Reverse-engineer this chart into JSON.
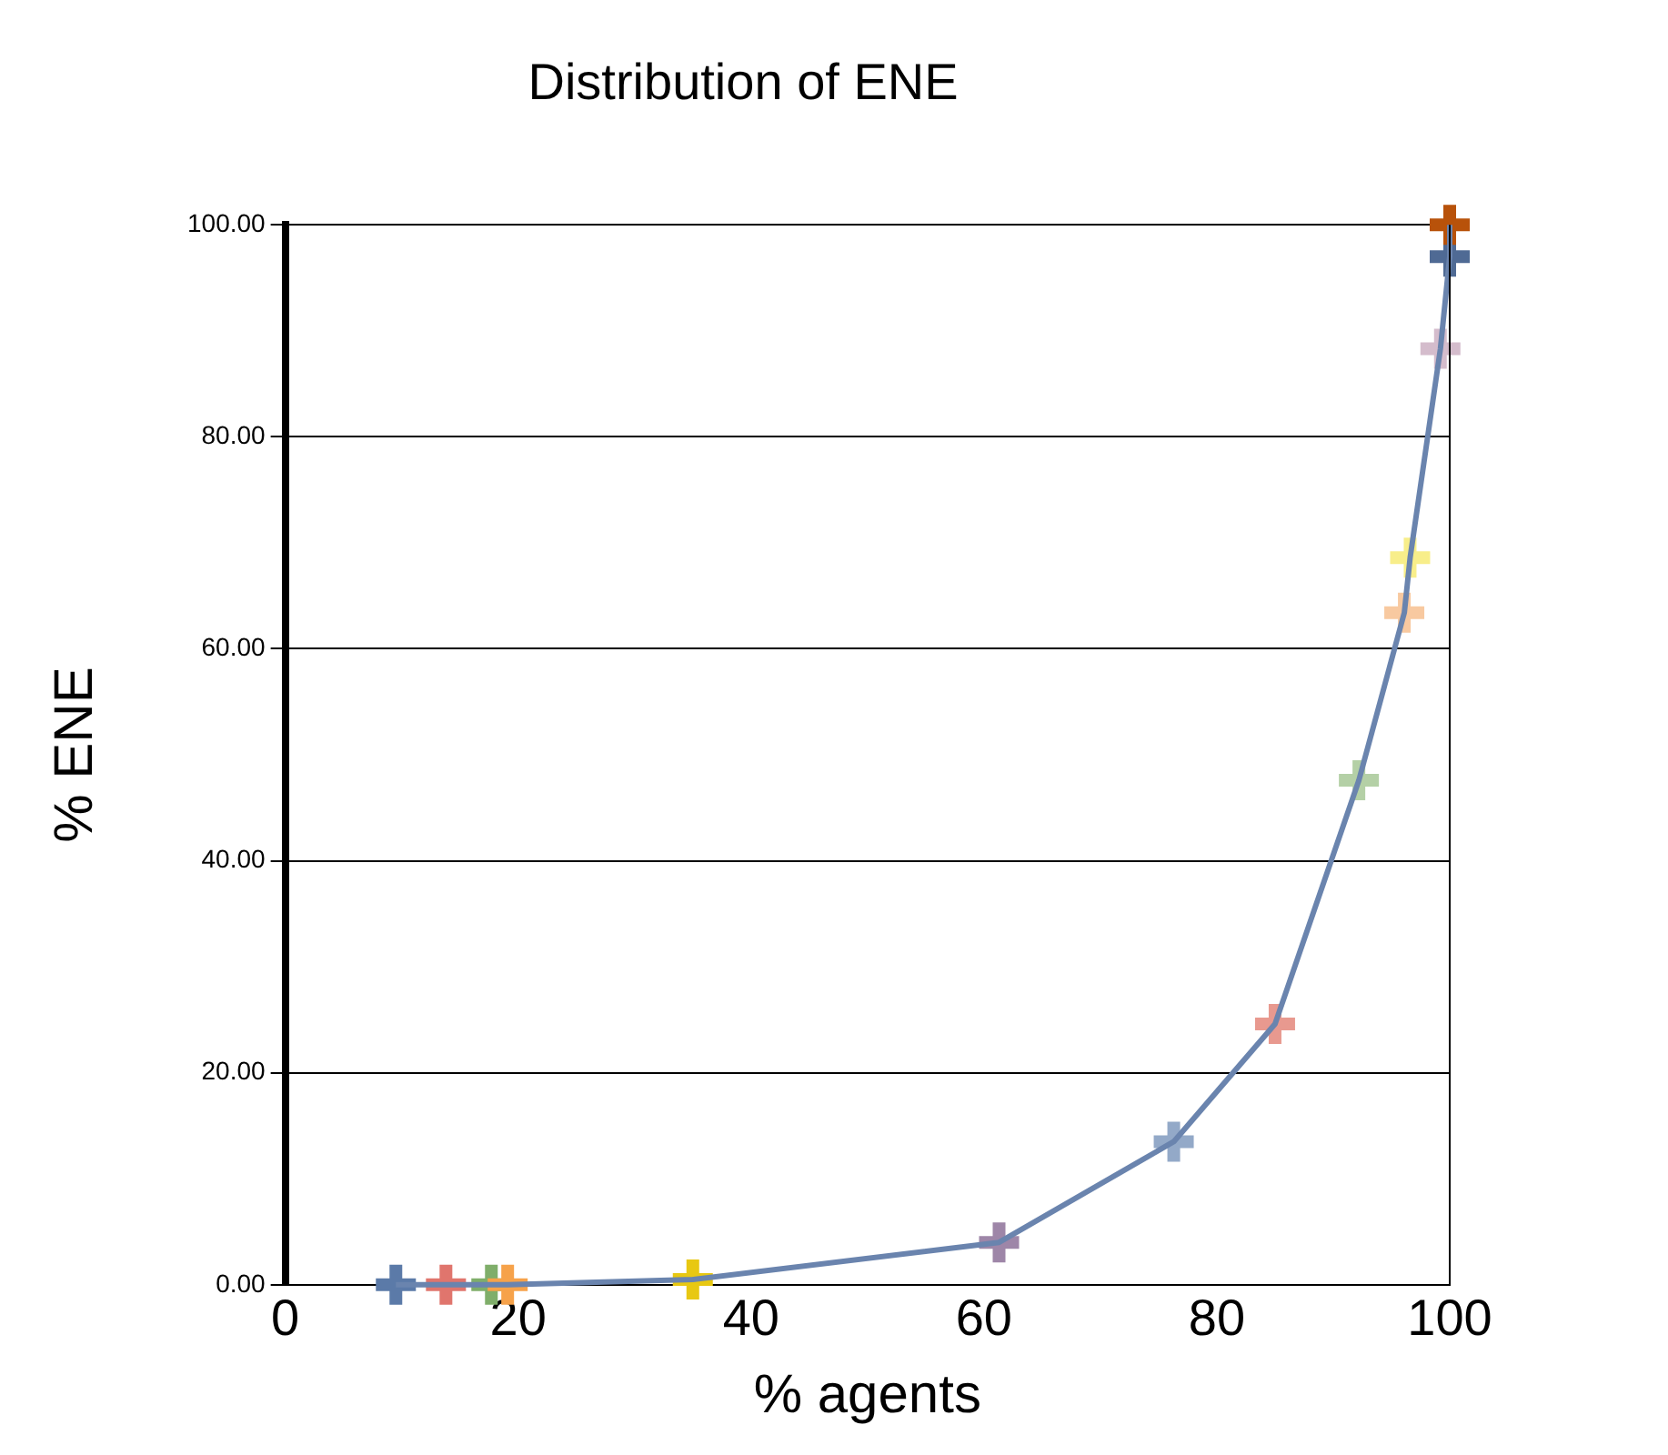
{
  "chart_data": {
    "type": "line",
    "title": "Distribution of ENE",
    "xlabel": "% agents",
    "ylabel": "% ENE",
    "x": [
      9.5,
      13.8,
      17.7,
      19.1,
      35,
      61.3,
      76.3,
      85,
      92.2,
      96.1,
      96.6,
      99.2,
      100,
      100
    ],
    "series": [
      {
        "color": "#6a84ae",
        "colors": [
          "#5b7aa8",
          "#e0756d",
          "#7fae6a",
          "#f6a24a",
          "#e8c812",
          "#9e86a8",
          "#93a9c8",
          "#e8998f",
          "#b4d0a6",
          "#f8c9a0",
          "#f8ee8a",
          "#d4bccc",
          "#4f6a94",
          "#b8520a"
        ],
        "values": [
          0,
          0,
          0,
          0,
          0.5,
          4,
          13.5,
          24.6,
          47.6,
          63.4,
          68.6,
          88.3,
          97,
          100
        ]
      }
    ],
    "xlim": [
      0,
      100
    ],
    "xticks": [
      0,
      20,
      40,
      60,
      80,
      100
    ],
    "ylim": [
      0,
      100
    ],
    "yticks": [
      {
        "value": 0,
        "label": "0.00"
      },
      {
        "value": 20,
        "label": "20.00"
      },
      {
        "value": 40,
        "label": "40.00"
      },
      {
        "value": 60,
        "label": "60.00"
      },
      {
        "value": 80,
        "label": "80.00"
      },
      {
        "value": 100,
        "label": "100.00"
      }
    ],
    "grid": "y",
    "marker": "cross",
    "line_style": "solid",
    "legend": false
  }
}
